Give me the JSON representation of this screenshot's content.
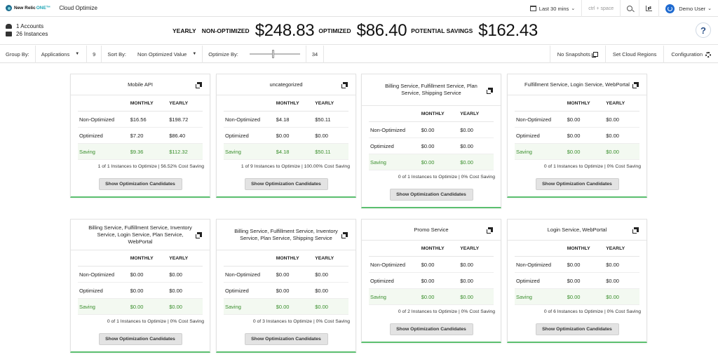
{
  "topbar": {
    "brand": "New Relic",
    "brand_suffix": "ONE™",
    "app_title": "Cloud Optimize",
    "time_range": "Last 30 mins",
    "shortcut_hint": "ctrl + space",
    "user": "Demo User"
  },
  "summary": {
    "accounts": "1 Accounts",
    "instances": "26 Instances",
    "period": "YEARLY",
    "non_optimized_label": "NON-OPTIMIZED",
    "non_optimized_value": "$248.83",
    "optimized_label": "OPTIMIZED",
    "optimized_value": "$86.40",
    "savings_label": "POTENTIAL SAVINGS",
    "savings_value": "$162.43",
    "help": "?"
  },
  "filters": {
    "group_by_label": "Group By:",
    "group_by_value": "Applications",
    "group_count": "9",
    "sort_by_label": "Sort By:",
    "sort_by_value": "Non Optimized Value",
    "optimize_by_label": "Optimize By:",
    "optimize_value": "34",
    "optimize_level": 0.45,
    "snapshots": "No Snapshots",
    "cloud_regions": "Set Cloud Regions",
    "configuration": "Configuration"
  },
  "table_labels": {
    "monthly": "MONTHLY",
    "yearly": "YEARLY",
    "non_optimized": "Non-Optimized",
    "optimized": "Optimized",
    "saving": "Saving",
    "button": "Show Optimization Candidates"
  },
  "cards": [
    {
      "title": "Mobile API",
      "non_opt_m": "$16.56",
      "non_opt_y": "$198.72",
      "opt_m": "$7.20",
      "opt_y": "$86.40",
      "save_m": "$9.36",
      "save_y": "$112.32",
      "footer": "1 of 1 Instances to Optimize | 56.52% Cost Saving"
    },
    {
      "title": "uncategorized",
      "non_opt_m": "$4.18",
      "non_opt_y": "$50.11",
      "opt_m": "$0.00",
      "opt_y": "$0.00",
      "save_m": "$4.18",
      "save_y": "$50.11",
      "footer": "1 of 9 Instances to Optimize | 100.00% Cost Saving"
    },
    {
      "title": "Billing Service, Fulfillment Service, Plan Service, Shipping Service",
      "non_opt_m": "$0.00",
      "non_opt_y": "$0.00",
      "opt_m": "$0.00",
      "opt_y": "$0.00",
      "save_m": "$0.00",
      "save_y": "$0.00",
      "footer": "0 of 1 Instances to Optimize | 0% Cost Saving"
    },
    {
      "title": "Fulfillment Service, Login Service, WebPortal",
      "non_opt_m": "$0.00",
      "non_opt_y": "$0.00",
      "opt_m": "$0.00",
      "opt_y": "$0.00",
      "save_m": "$0.00",
      "save_y": "$0.00",
      "footer": "0 of 1 Instances to Optimize | 0% Cost Saving"
    },
    {
      "title": "Billing Service, Fulfillment Service, Inventory Service, Login Service, Plan Service, WebPortal",
      "non_opt_m": "$0.00",
      "non_opt_y": "$0.00",
      "opt_m": "$0.00",
      "opt_y": "$0.00",
      "save_m": "$0.00",
      "save_y": "$0.00",
      "footer": "0 of 1 Instances to Optimize | 0% Cost Saving"
    },
    {
      "title": "Billing Service, Fulfillment Service, Inventory Service, Plan Service, Shipping Service",
      "non_opt_m": "$0.00",
      "non_opt_y": "$0.00",
      "opt_m": "$0.00",
      "opt_y": "$0.00",
      "save_m": "$0.00",
      "save_y": "$0.00",
      "footer": "0 of 3 Instances to Optimize | 0% Cost Saving"
    },
    {
      "title": "Promo Service",
      "non_opt_m": "$0.00",
      "non_opt_y": "$0.00",
      "opt_m": "$0.00",
      "opt_y": "$0.00",
      "save_m": "$0.00",
      "save_y": "$0.00",
      "footer": "0 of 2 Instances to Optimize | 0% Cost Saving"
    },
    {
      "title": "Login Service, WebPortal",
      "non_opt_m": "$0.00",
      "non_opt_y": "$0.00",
      "opt_m": "$0.00",
      "opt_y": "$0.00",
      "save_m": "$0.00",
      "save_y": "$0.00",
      "footer": "0 of 6 Instances to Optimize | 0% Cost Saving"
    }
  ],
  "icons": {
    "calendar": "calendar-icon",
    "search": "search-icon",
    "chart": "chart-icon",
    "user": "power-user-icon",
    "copy": "copy-icon",
    "gear": "gear-icon"
  },
  "colors": {
    "saving_text": "#3a8f2d",
    "card_accent": "#5bbf6f",
    "avatar": "#1e6ad0"
  }
}
